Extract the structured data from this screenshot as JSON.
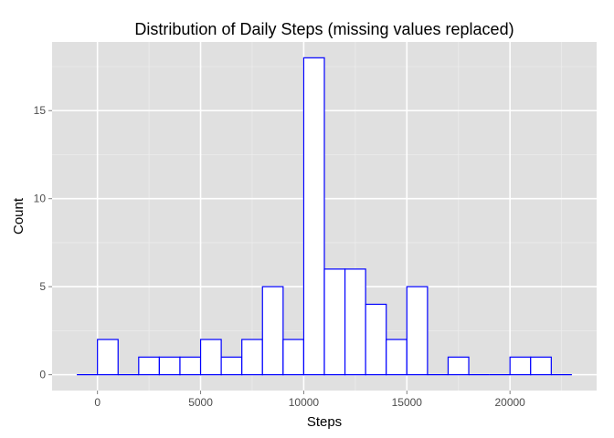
{
  "chart_data": {
    "type": "bar",
    "subtype": "histogram",
    "title": "Distribution of Daily Steps (missing values replaced)",
    "xlabel": "Steps",
    "ylabel": "Count",
    "bin_width": 1000,
    "bins": [
      {
        "start": -1000,
        "end": 0,
        "count": 0
      },
      {
        "start": 0,
        "end": 1000,
        "count": 2
      },
      {
        "start": 1000,
        "end": 2000,
        "count": 0
      },
      {
        "start": 2000,
        "end": 3000,
        "count": 1
      },
      {
        "start": 3000,
        "end": 4000,
        "count": 1
      },
      {
        "start": 4000,
        "end": 5000,
        "count": 1
      },
      {
        "start": 5000,
        "end": 6000,
        "count": 2
      },
      {
        "start": 6000,
        "end": 7000,
        "count": 1
      },
      {
        "start": 7000,
        "end": 8000,
        "count": 2
      },
      {
        "start": 8000,
        "end": 9000,
        "count": 5
      },
      {
        "start": 9000,
        "end": 10000,
        "count": 2
      },
      {
        "start": 10000,
        "end": 11000,
        "count": 18
      },
      {
        "start": 11000,
        "end": 12000,
        "count": 6
      },
      {
        "start": 12000,
        "end": 13000,
        "count": 6
      },
      {
        "start": 13000,
        "end": 14000,
        "count": 4
      },
      {
        "start": 14000,
        "end": 15000,
        "count": 2
      },
      {
        "start": 15000,
        "end": 16000,
        "count": 5
      },
      {
        "start": 16000,
        "end": 17000,
        "count": 0
      },
      {
        "start": 17000,
        "end": 18000,
        "count": 1
      },
      {
        "start": 18000,
        "end": 19000,
        "count": 0
      },
      {
        "start": 19000,
        "end": 20000,
        "count": 0
      },
      {
        "start": 20000,
        "end": 21000,
        "count": 1
      },
      {
        "start": 21000,
        "end": 22000,
        "count": 1
      },
      {
        "start": 22000,
        "end": 23000,
        "count": 0
      }
    ],
    "xlim": [
      -2200,
      24200
    ],
    "ylim": [
      -0.9,
      18.9
    ],
    "x_ticks": [
      0,
      5000,
      10000,
      15000,
      20000
    ],
    "x_tick_labels": [
      "0",
      "5000",
      "10000",
      "15000",
      "20000"
    ],
    "y_ticks": [
      0,
      5,
      10,
      15
    ],
    "y_tick_labels": [
      "0",
      "5",
      "10",
      "15"
    ],
    "grid": true,
    "legend": "none",
    "colors": {
      "panel_background": "#e0e0e0",
      "grid_major": "#ffffff",
      "grid_minor": "#ececec",
      "bar_fill": "#ffffff",
      "bar_outline": "#0000ff",
      "tick_text": "#4d4d4d",
      "tick_mark": "#7f7f7f"
    }
  }
}
